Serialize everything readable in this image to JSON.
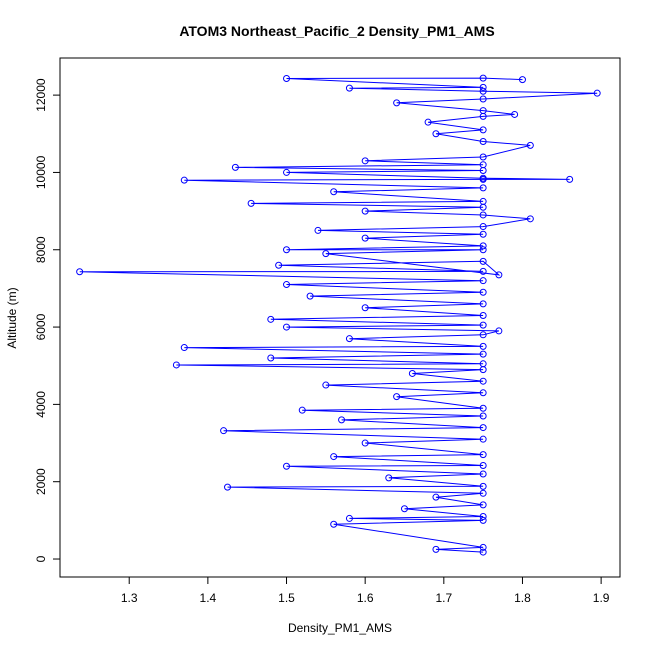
{
  "chart_data": {
    "type": "line",
    "markers": "circle",
    "title": "ATOM3 Northeast_Pacific_2 Density_PM1_AMS",
    "xlabel": "Density_PM1_AMS",
    "ylabel": "Altitude (m)",
    "color": "#0000ff",
    "x": [
      1.75,
      1.69,
      1.75,
      1.56,
      1.75,
      1.58,
      1.75,
      1.65,
      1.75,
      1.69,
      1.75,
      1.425,
      1.75,
      1.63,
      1.75,
      1.5,
      1.75,
      1.56,
      1.75,
      1.6,
      1.75,
      1.42,
      1.75,
      1.57,
      1.75,
      1.52,
      1.75,
      1.64,
      1.75,
      1.55,
      1.75,
      1.66,
      1.75,
      1.36,
      1.75,
      1.48,
      1.75,
      1.37,
      1.75,
      1.58,
      1.75,
      1.77,
      1.5,
      1.75,
      1.48,
      1.75,
      1.6,
      1.75,
      1.53,
      1.75,
      1.5,
      1.75,
      1.237,
      1.75,
      1.49,
      1.75,
      1.77,
      1.55,
      1.75,
      1.5,
      1.75,
      1.6,
      1.75,
      1.54,
      1.75,
      1.81,
      1.75,
      1.6,
      1.75,
      1.455,
      1.75,
      1.56,
      1.75,
      1.37,
      1.75,
      1.86,
      1.75,
      1.5,
      1.75,
      1.435,
      1.75,
      1.6,
      1.75,
      1.81,
      1.75,
      1.69,
      1.75,
      1.68,
      1.75,
      1.79,
      1.75,
      1.64,
      1.75,
      1.895,
      1.75,
      1.58,
      1.75,
      1.5,
      1.75,
      1.8
    ],
    "values": [
      180,
      250,
      300,
      900,
      1000,
      1050,
      1100,
      1300,
      1400,
      1600,
      1700,
      1860,
      1880,
      2100,
      2200,
      2400,
      2420,
      2650,
      2700,
      3000,
      3100,
      3320,
      3400,
      3600,
      3700,
      3850,
      3900,
      4200,
      4300,
      4500,
      4600,
      4800,
      4900,
      5020,
      5050,
      5200,
      5300,
      5470,
      5500,
      5700,
      5800,
      5900,
      6000,
      6050,
      6200,
      6300,
      6500,
      6600,
      6800,
      6900,
      7100,
      7200,
      7430,
      7440,
      7600,
      7700,
      7350,
      7900,
      8000,
      8000,
      8100,
      8300,
      8400,
      8500,
      8600,
      8800,
      8900,
      9000,
      9100,
      9200,
      9250,
      9500,
      9600,
      9800,
      9820,
      9820,
      9850,
      10000,
      10050,
      10130,
      10200,
      10300,
      10400,
      10700,
      10800,
      11000,
      11100,
      11300,
      11450,
      11500,
      11600,
      11800,
      11900,
      12050,
      12100,
      12180,
      12200,
      12430,
      12440,
      12400
    ],
    "xlim": [
      1.212,
      1.924
    ],
    "ylim": [
      -465,
      12960
    ],
    "xticks": [
      1.3,
      1.4,
      1.5,
      1.6,
      1.7,
      1.8,
      1.9
    ],
    "yticks": [
      0,
      2000,
      4000,
      6000,
      8000,
      10000,
      12000
    ]
  }
}
